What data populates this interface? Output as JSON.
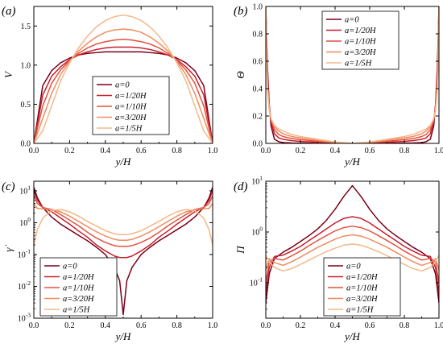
{
  "colors": [
    "#7a0019",
    "#c81e2b",
    "#e2523f",
    "#ef8c5f",
    "#f5b888"
  ],
  "chart_data": [
    {
      "type": "line",
      "panel_label": "(a)",
      "xlabel": "y/H",
      "ylabel": "V",
      "xlim": [
        0,
        1
      ],
      "ylim": [
        0,
        1.75
      ],
      "y_scale": "linear",
      "x_ticks": [
        "0.0",
        "0.2",
        "0.4",
        "0.6",
        "0.8",
        "1.0"
      ],
      "y_ticks": [
        {
          "v": 0,
          "label": "0.0"
        },
        {
          "v": 0.5,
          "label": "0.5"
        },
        {
          "v": 1.0,
          "label": "1.0"
        },
        {
          "v": 1.5,
          "label": "1.5"
        }
      ],
      "legend_position": "center-bottom",
      "x": [
        0,
        0.05,
        0.1,
        0.15,
        0.2,
        0.25,
        0.3,
        0.35,
        0.4,
        0.45,
        0.5,
        0.55,
        0.6,
        0.65,
        0.7,
        0.75,
        0.8,
        0.85,
        0.9,
        0.95,
        1.0
      ],
      "series": [
        {
          "name": "a=0",
          "values": [
            0,
            0.74,
            0.93,
            1.03,
            1.09,
            1.13,
            1.15,
            1.16,
            1.17,
            1.17,
            1.17,
            1.17,
            1.17,
            1.16,
            1.15,
            1.13,
            1.09,
            1.03,
            0.93,
            0.74,
            0
          ]
        },
        {
          "name": "a=1/20H",
          "values": [
            0,
            0.62,
            0.86,
            0.98,
            1.07,
            1.13,
            1.17,
            1.2,
            1.22,
            1.23,
            1.23,
            1.23,
            1.22,
            1.2,
            1.17,
            1.13,
            1.07,
            0.98,
            0.86,
            0.62,
            0
          ]
        },
        {
          "name": "a=1/10H",
          "values": [
            0,
            0.48,
            0.77,
            0.94,
            1.06,
            1.15,
            1.22,
            1.27,
            1.3,
            1.32,
            1.33,
            1.32,
            1.3,
            1.27,
            1.22,
            1.15,
            1.06,
            0.94,
            0.77,
            0.48,
            0
          ]
        },
        {
          "name": "a=3/20H",
          "values": [
            0,
            0.32,
            0.64,
            0.88,
            1.05,
            1.18,
            1.28,
            1.36,
            1.42,
            1.45,
            1.46,
            1.45,
            1.42,
            1.36,
            1.28,
            1.18,
            1.05,
            0.88,
            0.64,
            0.32,
            0
          ]
        },
        {
          "name": "a=1/5H",
          "values": [
            0,
            0.16,
            0.48,
            0.8,
            1.03,
            1.22,
            1.37,
            1.49,
            1.57,
            1.62,
            1.64,
            1.62,
            1.57,
            1.49,
            1.37,
            1.22,
            1.03,
            0.8,
            0.48,
            0.16,
            0
          ]
        }
      ]
    },
    {
      "type": "line",
      "panel_label": "(b)",
      "xlabel": "y/H",
      "ylabel": "Θ",
      "xlim": [
        0,
        1
      ],
      "ylim": [
        0,
        1.0
      ],
      "y_scale": "linear",
      "x_ticks": [
        "0.0",
        "0.2",
        "0.4",
        "0.6",
        "0.8",
        "1.0"
      ],
      "y_ticks": [
        {
          "v": 0,
          "label": "0.0"
        },
        {
          "v": 0.2,
          "label": "0.2"
        },
        {
          "v": 0.4,
          "label": "0.4"
        },
        {
          "v": 0.6,
          "label": "0.6"
        },
        {
          "v": 0.8,
          "label": "0.8"
        },
        {
          "v": 1.0,
          "label": "1.0"
        }
      ],
      "legend_position": "top-center",
      "x": [
        0,
        0.005,
        0.01,
        0.02,
        0.03,
        0.05,
        0.075,
        0.1,
        0.15,
        0.2,
        0.3,
        0.4,
        0.5,
        0.6,
        0.7,
        0.8,
        0.85,
        0.9,
        0.925,
        0.95,
        0.97,
        0.98,
        0.99,
        0.995,
        1.0
      ],
      "series": [
        {
          "name": "a=0",
          "values": [
            1.0,
            0.75,
            0.55,
            0.28,
            0.13,
            0.03,
            0.012,
            0.006,
            0.003,
            0.002,
            0.001,
            0.0,
            0.0,
            0.0,
            0.001,
            0.002,
            0.003,
            0.006,
            0.012,
            0.03,
            0.13,
            0.28,
            0.55,
            0.75,
            1.0
          ]
        },
        {
          "name": "a=1/20H",
          "values": [
            1.0,
            0.7,
            0.5,
            0.28,
            0.16,
            0.07,
            0.04,
            0.03,
            0.02,
            0.015,
            0.008,
            0.003,
            0.0,
            0.003,
            0.008,
            0.015,
            0.02,
            0.03,
            0.04,
            0.07,
            0.16,
            0.28,
            0.5,
            0.7,
            1.0
          ]
        },
        {
          "name": "a=1/10H",
          "values": [
            1.0,
            0.66,
            0.46,
            0.26,
            0.17,
            0.1,
            0.065,
            0.05,
            0.035,
            0.027,
            0.015,
            0.006,
            0.0,
            0.006,
            0.015,
            0.027,
            0.035,
            0.05,
            0.065,
            0.1,
            0.17,
            0.26,
            0.46,
            0.66,
            1.0
          ]
        },
        {
          "name": "a=3/20H",
          "values": [
            1.0,
            0.62,
            0.42,
            0.25,
            0.18,
            0.12,
            0.09,
            0.07,
            0.05,
            0.04,
            0.022,
            0.008,
            0.0,
            0.008,
            0.022,
            0.04,
            0.05,
            0.07,
            0.09,
            0.12,
            0.18,
            0.25,
            0.42,
            0.62,
            1.0
          ]
        },
        {
          "name": "a=1/5H",
          "values": [
            1.0,
            0.58,
            0.39,
            0.24,
            0.18,
            0.13,
            0.105,
            0.09,
            0.065,
            0.05,
            0.03,
            0.01,
            0.0,
            0.01,
            0.03,
            0.05,
            0.065,
            0.09,
            0.105,
            0.13,
            0.18,
            0.24,
            0.39,
            0.58,
            1.0
          ]
        }
      ]
    },
    {
      "type": "line",
      "panel_label": "(c)",
      "xlabel": "y/H",
      "ylabel": "γ̇",
      "xlim": [
        0,
        1
      ],
      "ylim": [
        0.001,
        20
      ],
      "y_scale": "log",
      "x_ticks": [
        "0.0",
        "0.2",
        "0.4",
        "0.6",
        "0.8",
        "1.0"
      ],
      "y_ticks": [
        {
          "v": 0.001,
          "base": "10",
          "exp": "-3"
        },
        {
          "v": 0.01,
          "base": "10",
          "exp": "-2"
        },
        {
          "v": 0.1,
          "base": "10",
          "exp": "-1"
        },
        {
          "v": 1,
          "base": "10",
          "exp": "0"
        },
        {
          "v": 10,
          "base": "10",
          "exp": "1"
        }
      ],
      "legend_position": "bottom-left",
      "x": [
        0,
        0.02,
        0.05,
        0.1,
        0.15,
        0.2,
        0.25,
        0.3,
        0.35,
        0.4,
        0.45,
        0.48,
        0.5,
        0.52,
        0.55,
        0.6,
        0.65,
        0.7,
        0.75,
        0.8,
        0.85,
        0.9,
        0.95,
        0.98,
        1.0
      ],
      "series": [
        {
          "name": "a=0",
          "values": [
            13,
            6,
            3,
            1.5,
            0.9,
            0.6,
            0.4,
            0.27,
            0.17,
            0.1,
            0.04,
            0.015,
            0.0013,
            0.015,
            0.04,
            0.1,
            0.17,
            0.27,
            0.4,
            0.6,
            0.9,
            1.5,
            3,
            6,
            13
          ]
        },
        {
          "name": "a=1/20H",
          "values": [
            10,
            5,
            3,
            2.2,
            1.4,
            0.9,
            0.55,
            0.35,
            0.2,
            0.13,
            0.09,
            0.08,
            0.08,
            0.08,
            0.09,
            0.13,
            0.2,
            0.35,
            0.55,
            0.9,
            1.4,
            2.2,
            3,
            5,
            10
          ]
        },
        {
          "name": "a=1/10H",
          "values": [
            7,
            4,
            3,
            2.6,
            1.8,
            1.2,
            0.8,
            0.5,
            0.33,
            0.24,
            0.19,
            0.18,
            0.18,
            0.18,
            0.19,
            0.24,
            0.33,
            0.5,
            0.8,
            1.2,
            1.8,
            2.6,
            3,
            4,
            7
          ]
        },
        {
          "name": "a=3/20H",
          "values": [
            4,
            2.8,
            2.7,
            2.6,
            2.2,
            1.6,
            1.1,
            0.75,
            0.52,
            0.38,
            0.3,
            0.28,
            0.28,
            0.28,
            0.3,
            0.38,
            0.52,
            0.75,
            1.1,
            1.6,
            2.2,
            2.6,
            2.7,
            2.8,
            4
          ]
        },
        {
          "name": "a=1/5H",
          "values": [
            0.2,
            0.6,
            1.4,
            2.4,
            2.6,
            2.2,
            1.6,
            1.1,
            0.78,
            0.56,
            0.45,
            0.42,
            0.42,
            0.42,
            0.45,
            0.56,
            0.78,
            1.1,
            1.6,
            2.2,
            2.6,
            2.4,
            1.4,
            0.6,
            0.2
          ]
        }
      ]
    },
    {
      "type": "line",
      "panel_label": "(d)",
      "xlabel": "y/H",
      "ylabel": "Π",
      "xlim": [
        0,
        1
      ],
      "ylim": [
        0.02,
        10
      ],
      "y_scale": "log",
      "x_ticks": [
        "0.0",
        "0.2",
        "0.4",
        "0.6",
        "0.8",
        "1.0"
      ],
      "y_ticks": [
        {
          "v": 0.1,
          "base": "10",
          "exp": "-1"
        },
        {
          "v": 1,
          "base": "10",
          "exp": "0"
        },
        {
          "v": 10,
          "base": "10",
          "exp": "1"
        }
      ],
      "legend_position": "bottom-center",
      "x": [
        0,
        0.02,
        0.05,
        0.1,
        0.15,
        0.2,
        0.25,
        0.3,
        0.35,
        0.4,
        0.45,
        0.5,
        0.55,
        0.6,
        0.65,
        0.7,
        0.75,
        0.8,
        0.85,
        0.9,
        0.95,
        0.98,
        1.0
      ],
      "series": [
        {
          "name": "a=0",
          "values": [
            0.04,
            0.15,
            0.3,
            0.4,
            0.5,
            0.65,
            0.85,
            1.15,
            1.7,
            2.8,
            5,
            8.2,
            5,
            2.8,
            1.7,
            1.15,
            0.85,
            0.65,
            0.5,
            0.4,
            0.3,
            0.15,
            0.04
          ]
        },
        {
          "name": "a=1/20H",
          "values": [
            0.06,
            0.2,
            0.33,
            0.35,
            0.42,
            0.52,
            0.68,
            0.88,
            1.15,
            1.5,
            1.85,
            2.0,
            1.85,
            1.5,
            1.15,
            0.88,
            0.68,
            0.52,
            0.42,
            0.35,
            0.33,
            0.2,
            0.06
          ]
        },
        {
          "name": "a=1/10H",
          "values": [
            0.1,
            0.26,
            0.3,
            0.28,
            0.34,
            0.42,
            0.54,
            0.68,
            0.85,
            1.05,
            1.22,
            1.3,
            1.22,
            1.05,
            0.85,
            0.68,
            0.54,
            0.42,
            0.34,
            0.28,
            0.3,
            0.26,
            0.1
          ]
        },
        {
          "name": "a=3/20H",
          "values": [
            0.18,
            0.3,
            0.25,
            0.22,
            0.26,
            0.32,
            0.4,
            0.5,
            0.6,
            0.72,
            0.83,
            0.88,
            0.83,
            0.72,
            0.6,
            0.5,
            0.4,
            0.32,
            0.26,
            0.22,
            0.25,
            0.3,
            0.18
          ]
        },
        {
          "name": "a=1/5H",
          "values": [
            0.35,
            0.26,
            0.2,
            0.17,
            0.19,
            0.23,
            0.28,
            0.34,
            0.41,
            0.48,
            0.55,
            0.58,
            0.55,
            0.48,
            0.41,
            0.34,
            0.28,
            0.23,
            0.19,
            0.17,
            0.2,
            0.26,
            0.35
          ]
        }
      ]
    }
  ]
}
